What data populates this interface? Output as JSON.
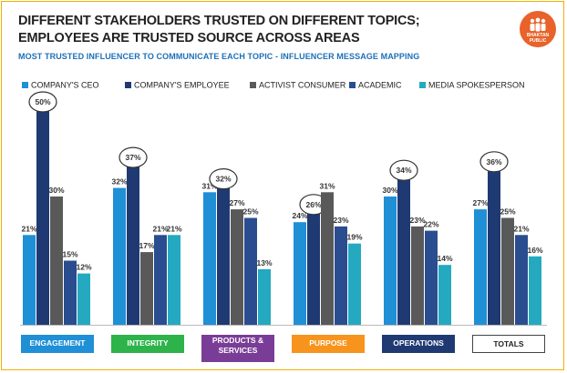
{
  "header": {
    "title": "DIFFERENT STAKEHOLDERS TRUSTED ON DIFFERENT TOPICS; EMPLOYEES ARE TRUSTED SOURCE ACROSS AREAS",
    "subtitle": "MOST TRUSTED INFLUENCER TO COMMUNICATE EACH TOPIC - INFLUENCER MESSAGE MAPPING",
    "logo_line1": "BHAKTAN",
    "logo_line2": "PUBLIC",
    "logo_color": "#e8622a"
  },
  "chart_data": {
    "type": "bar",
    "categories": [
      "ENGAGEMENT",
      "INTEGRITY",
      "PRODUCTS & SERVICES",
      "PURPOSE",
      "OPERATIONS",
      "TOTALS"
    ],
    "category_labels": [
      [
        "ENGAGEMENT"
      ],
      [
        "INTEGRITY"
      ],
      [
        "PRODUCTS &",
        "SERVICES"
      ],
      [
        "PURPOSE"
      ],
      [
        "OPERATIONS"
      ],
      [
        "TOTALS"
      ]
    ],
    "category_box_colors": [
      "#1f8fd6",
      "#2db34a",
      "#7a3d97",
      "#f7941d",
      "#1f3a73",
      "#ffffff"
    ],
    "series": [
      {
        "name": "COMPANY'S CEO",
        "color": "#1f8fd6",
        "values": [
          21,
          32,
          31,
          24,
          30,
          27
        ]
      },
      {
        "name": "COMPANY'S EMPLOYEE",
        "color": "#1f3a73",
        "values": [
          50,
          37,
          32,
          26,
          34,
          36
        ]
      },
      {
        "name": "ACTIVIST CONSUMER",
        "color": "#595959",
        "values": [
          30,
          17,
          27,
          31,
          23,
          25
        ]
      },
      {
        "name": "ACADEMIC",
        "color": "#2a4d8f",
        "values": [
          15,
          21,
          25,
          23,
          22,
          21
        ]
      },
      {
        "name": "MEDIA SPOKESPERSON",
        "color": "#24a9c1",
        "values": [
          12,
          21,
          13,
          19,
          14,
          16
        ]
      }
    ],
    "value_labels": [
      [
        "21%",
        "50%",
        "30%",
        "15%",
        "12%"
      ],
      [
        "32%",
        "37%",
        "17%",
        "21%",
        "21%"
      ],
      [
        "31%",
        "32%",
        "27%",
        "25%",
        "13%"
      ],
      [
        "24%",
        "26%",
        "31%",
        "23%",
        "19%"
      ],
      [
        "30%",
        "34%",
        "23%",
        "22%",
        "14%"
      ],
      [
        "27%",
        "36%",
        "25%",
        "21%",
        "16%"
      ]
    ],
    "highlighted_series": "COMPANY'S EMPLOYEE",
    "ylim": [
      0,
      55
    ],
    "grid": false,
    "legend_position": "top"
  }
}
